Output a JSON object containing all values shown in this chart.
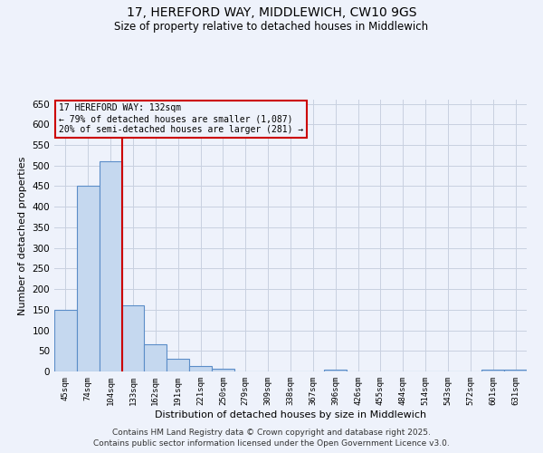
{
  "title1": "17, HEREFORD WAY, MIDDLEWICH, CW10 9GS",
  "title2": "Size of property relative to detached houses in Middlewich",
  "xlabel": "Distribution of detached houses by size in Middlewich",
  "ylabel": "Number of detached properties",
  "categories": [
    "45sqm",
    "74sqm",
    "104sqm",
    "133sqm",
    "162sqm",
    "191sqm",
    "221sqm",
    "250sqm",
    "279sqm",
    "309sqm",
    "338sqm",
    "367sqm",
    "396sqm",
    "426sqm",
    "455sqm",
    "484sqm",
    "514sqm",
    "543sqm",
    "572sqm",
    "601sqm",
    "631sqm"
  ],
  "values": [
    150,
    450,
    510,
    160,
    65,
    30,
    13,
    7,
    0,
    0,
    0,
    0,
    5,
    0,
    0,
    0,
    0,
    0,
    0,
    5,
    5
  ],
  "bar_color": "#c5d8ef",
  "bar_edge_color": "#5b8dc8",
  "vline_x_index": 2.5,
  "vline_color": "#cc0000",
  "annotation_line1": "17 HEREFORD WAY: 132sqm",
  "annotation_line2": "← 79% of detached houses are smaller (1,087)",
  "annotation_line3": "20% of semi-detached houses are larger (281) →",
  "box_edge_color": "#cc0000",
  "ylim": [
    0,
    660
  ],
  "yticks": [
    0,
    50,
    100,
    150,
    200,
    250,
    300,
    350,
    400,
    450,
    500,
    550,
    600,
    650
  ],
  "footer1": "Contains HM Land Registry data © Crown copyright and database right 2025.",
  "footer2": "Contains public sector information licensed under the Open Government Licence v3.0.",
  "bg_color": "#eef2fb",
  "grid_color": "#c8d0e0",
  "title1_fontsize": 10,
  "title2_fontsize": 8.5
}
